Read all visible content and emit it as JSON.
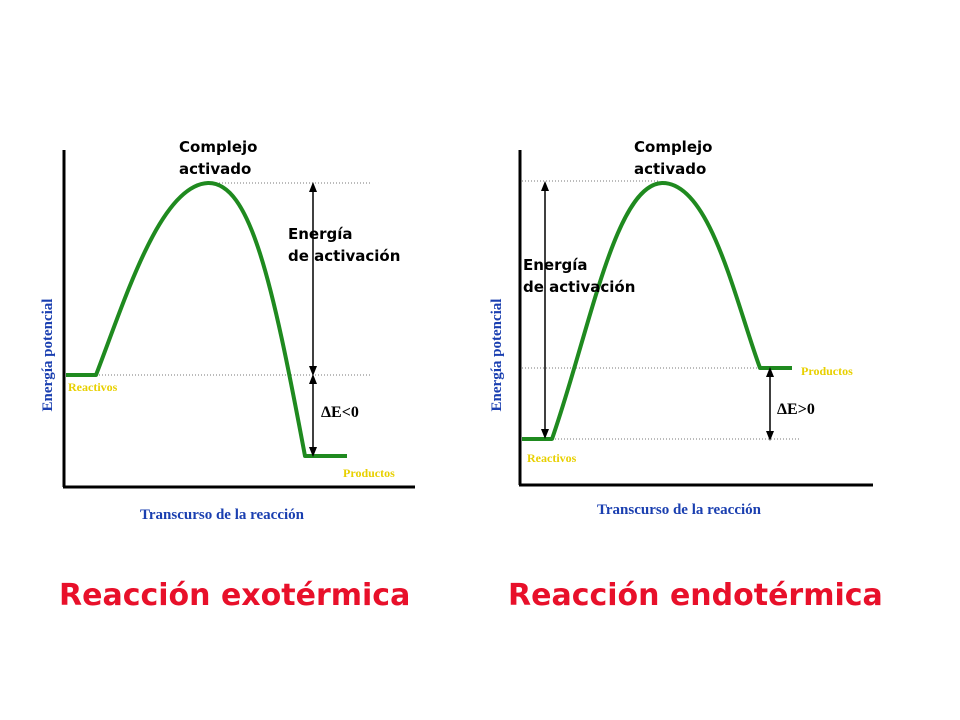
{
  "colors": {
    "curve": "#1f8a1f",
    "axis": "#000000",
    "label_blue": "#1a3fb0",
    "label_yellow": "#e8d000",
    "title_red": "#e8102a",
    "dotted": "#777777"
  },
  "diagrams": [
    {
      "title": "Reacción exotérmica",
      "y_axis_label": "Energía potencial",
      "x_axis_label": "Transcurso de la reacción",
      "complex_label_line1": "Complejo",
      "complex_label_line2": "activado",
      "activation_label_line1": "Energía",
      "activation_label_line2": "de activación",
      "delta_label": "ΔE<0",
      "reactants_label": "Reactivos",
      "products_label": "Productos",
      "levels": {
        "reactants": 0.36,
        "peak": 0.9,
        "products": 0.1
      }
    },
    {
      "title": "Reacción endotérmica",
      "y_axis_label": "Energía potencial",
      "x_axis_label": "Transcurso de la reacción",
      "complex_label_line1": "Complejo",
      "complex_label_line2": "activado",
      "activation_label_line1": "Energía",
      "activation_label_line2": "de activación",
      "delta_label": "ΔE>0",
      "reactants_label": "Reactivos",
      "products_label": "Productos",
      "levels": {
        "reactants": 0.14,
        "peak": 0.9,
        "products": 0.35
      }
    }
  ]
}
